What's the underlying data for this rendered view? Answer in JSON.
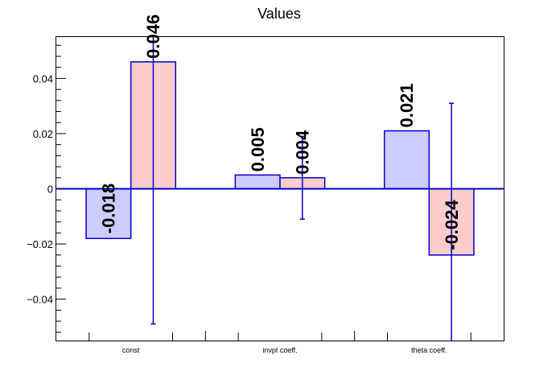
{
  "chart_data": {
    "type": "bar",
    "title": "Values",
    "categories": [
      "const",
      "invpt coeff.",
      "theta coeff."
    ],
    "ylim": [
      -0.055,
      0.055
    ],
    "yticks": [
      -0.04,
      -0.02,
      0,
      0.02,
      0.04
    ],
    "ytick_labels": [
      "−0.04",
      "−0.02",
      "0",
      "0.02",
      "0.04"
    ],
    "grid": false,
    "series": [
      {
        "color": "#ccccff",
        "values": [
          -0.018,
          0.005,
          0.021
        ],
        "labels": [
          "-0.018",
          "0.005",
          "0.021"
        ],
        "errors": [
          0,
          0,
          0
        ]
      },
      {
        "color": "#ffcccc",
        "values": [
          0.046,
          0.004,
          -0.024
        ],
        "labels": [
          "0.046",
          "0.004",
          "-0.024"
        ],
        "errors": [
          0.095,
          0.015,
          0.055
        ]
      }
    ],
    "edge_color": "#0000cc"
  }
}
